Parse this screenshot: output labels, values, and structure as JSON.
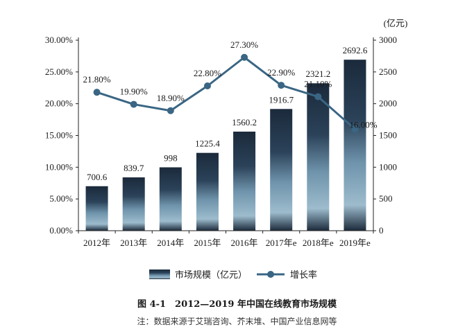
{
  "chart_data": {
    "type": "bar+line",
    "categories": [
      "2012年",
      "2013年",
      "2014年",
      "2015年",
      "2016年",
      "2017年e",
      "2018年e",
      "2019年e"
    ],
    "series": [
      {
        "name": "市场规模（亿元）",
        "type": "bar",
        "axis": "right",
        "values": [
          700.6,
          839.7,
          998,
          1225.4,
          1560.2,
          1916.7,
          2321.2,
          2692.6
        ],
        "labels": [
          "700.6",
          "839.7",
          "998",
          "1225.4",
          "1560.2",
          "1916.7",
          "2321.2",
          "2692.6"
        ]
      },
      {
        "name": "增长率",
        "type": "line",
        "axis": "left",
        "values": [
          21.8,
          19.9,
          18.9,
          22.8,
          27.3,
          22.9,
          21.1,
          16.0
        ],
        "labels": [
          "21.80%",
          "19.90%",
          "18.90%",
          "22.80%",
          "27.30%",
          "22.90%",
          "21.10%",
          "16.00%"
        ]
      }
    ],
    "left_axis": {
      "ylim": [
        0,
        30
      ],
      "ticks": [
        0,
        5,
        10,
        15,
        20,
        25,
        30
      ],
      "tick_labels": [
        "0.00%",
        "5.00%",
        "10.00%",
        "15.00%",
        "20.00%",
        "25.00%",
        "30.00%"
      ]
    },
    "right_axis": {
      "unit_label": "(亿元)",
      "ylim": [
        0,
        3000
      ],
      "ticks": [
        0,
        500,
        1000,
        1500,
        2000,
        2500,
        3000
      ],
      "tick_labels": [
        "0",
        "500",
        "1000",
        "1500",
        "2000",
        "2500",
        "3000"
      ]
    },
    "legend": {
      "position": "bottom",
      "items": [
        "市场规模（亿元）",
        "增长率"
      ]
    },
    "title": "图 4-1　2012—2019 年中国在线教育市场规模",
    "note": "注：数据来源于艾瑞咨询、芥末堆、中国产业信息网等"
  },
  "colors": {
    "bar_dark": "#1b2a3b",
    "bar_mid": "#34556f",
    "bar_light": "#8fb0c4",
    "line": "#3a6684",
    "marker": "#3a6684"
  }
}
